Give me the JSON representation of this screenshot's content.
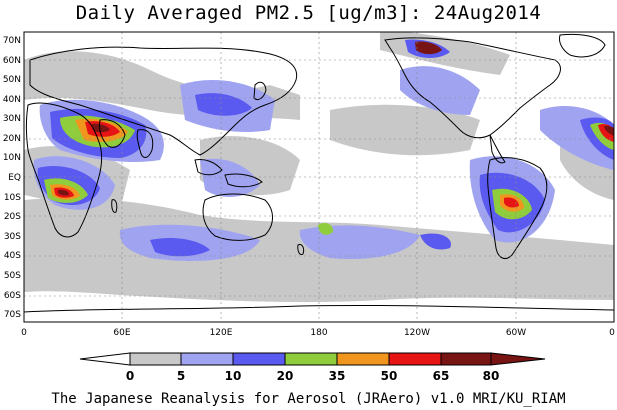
{
  "title": "Daily Averaged PM2.5 [ug/m3]: 24Aug2014",
  "credit": "The Japanese Reanalysis for Aerosol (JRAero) v1.0 MRI/KU_RIAM",
  "lat_labels": [
    "70N",
    "60N",
    "50N",
    "40N",
    "30N",
    "20N",
    "10N",
    "EQ",
    "10S",
    "20S",
    "30S",
    "40S",
    "50S",
    "60S",
    "70S"
  ],
  "lon_labels": [
    "0",
    "60E",
    "120E",
    "180",
    "120W",
    "60W",
    "0"
  ],
  "colorbar": {
    "levels": [
      "0",
      "5",
      "10",
      "20",
      "35",
      "50",
      "65",
      "80"
    ],
    "colors": [
      "#ffffff",
      "#c8c8c8",
      "#a0a4f0",
      "#5a5af0",
      "#90cd3c",
      "#f0961e",
      "#e61414",
      "#781414"
    ]
  }
}
